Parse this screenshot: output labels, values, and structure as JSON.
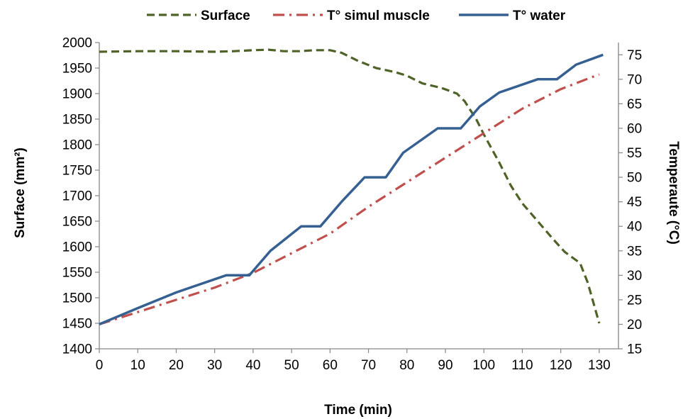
{
  "chart_data": {
    "type": "line",
    "title": "",
    "xlabel": "Time (min)",
    "ylabel": "Surface (mm²)",
    "y2label": "Temperaute (°C)",
    "xlim": [
      0,
      135
    ],
    "ylim": [
      1400,
      2000
    ],
    "y2lim": [
      15,
      77.5
    ],
    "x_ticks": [
      0,
      10,
      20,
      30,
      40,
      50,
      60,
      70,
      80,
      90,
      100,
      110,
      120,
      130
    ],
    "y_ticks": [
      1400,
      1450,
      1500,
      1550,
      1600,
      1650,
      1700,
      1750,
      1800,
      1850,
      1900,
      1950,
      2000
    ],
    "y2_ticks": [
      15,
      20,
      25,
      30,
      35,
      40,
      45,
      50,
      55,
      60,
      65,
      70,
      75
    ],
    "grid": false,
    "legend_position": "top",
    "series": [
      {
        "name": "Surface",
        "axis": "left",
        "color": "#4f6228",
        "style": "dashed",
        "x": [
          0,
          10,
          20,
          30,
          35,
          40,
          44,
          48,
          52,
          56,
          60,
          63,
          67,
          72,
          77,
          80,
          84,
          89,
          93,
          95,
          98,
          100,
          104,
          107,
          110,
          114,
          118,
          121,
          125,
          127,
          130
        ],
        "y": [
          1982,
          1983,
          1983,
          1982,
          1983,
          1985,
          1986,
          1983,
          1983,
          1985,
          1985,
          1980,
          1965,
          1950,
          1942,
          1935,
          1920,
          1911,
          1900,
          1885,
          1850,
          1820,
          1765,
          1720,
          1685,
          1650,
          1615,
          1590,
          1568,
          1530,
          1450
        ]
      },
      {
        "name": "T° simul muscle",
        "axis": "right",
        "color": "#c0504d",
        "style": "dash-dot",
        "x": [
          0,
          10,
          20,
          30,
          40,
          50,
          60,
          70,
          80,
          90,
          100,
          110,
          120,
          130
        ],
        "y": [
          20,
          22.5,
          25,
          27.5,
          30.5,
          34.5,
          38.5,
          44,
          49,
          54,
          59,
          64,
          68,
          71
        ]
      },
      {
        "name": "T° water",
        "axis": "right",
        "color": "#366092",
        "style": "solid",
        "x": [
          0,
          10,
          20,
          33,
          39,
          44.5,
          52.5,
          57.5,
          63,
          69,
          74.5,
          79,
          88,
          94,
          99,
          104,
          114,
          119,
          124,
          131
        ],
        "y": [
          20,
          23.3,
          26.5,
          30,
          30,
          35,
          40,
          40,
          45,
          50,
          50,
          55,
          60,
          60,
          64.5,
          67.3,
          70,
          70,
          73,
          75
        ]
      }
    ]
  }
}
